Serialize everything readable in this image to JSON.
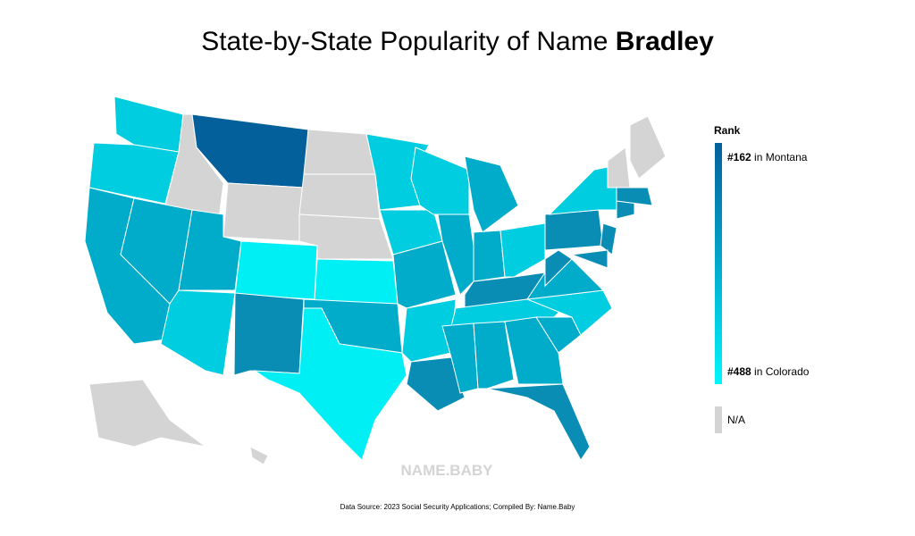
{
  "header": {
    "title_prefix": "State-by-State Popularity of Name",
    "title_name": "Bradley"
  },
  "legend": {
    "title": "Rank",
    "top": {
      "rank": "#162",
      "state": "in Montana"
    },
    "bottom": {
      "rank": "#488",
      "state": "in Colorado"
    },
    "na": "N/A"
  },
  "watermark": "NAME.BABY",
  "source": "Data Source: 2023 Social Security Applications; Compiled By: Name.Baby"
}
